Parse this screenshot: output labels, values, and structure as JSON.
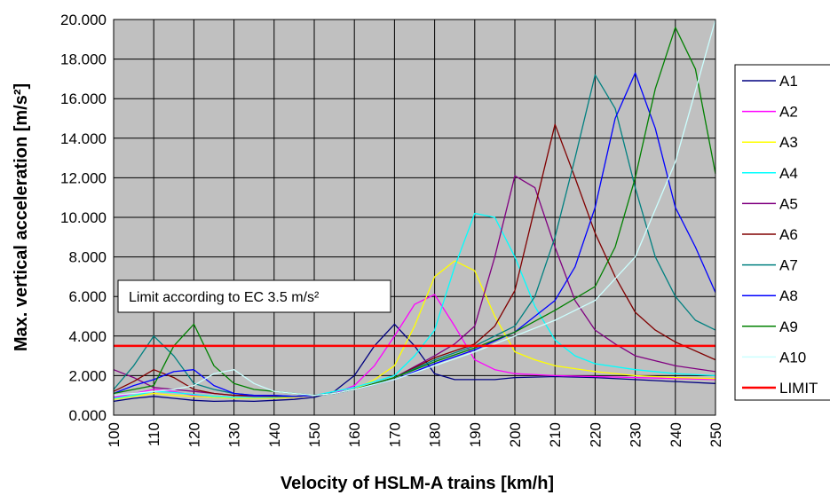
{
  "chart_data": {
    "type": "line",
    "title": "",
    "xlabel": "Velocity of HSLM-A trains [km/h]",
    "ylabel": "Max. vertical acceleration [m/s²]",
    "xlim": [
      100,
      250
    ],
    "ylim": [
      0,
      20
    ],
    "x_ticks": [
      "100",
      "110",
      "120",
      "130",
      "140",
      "150",
      "160",
      "170",
      "180",
      "190",
      "200",
      "210",
      "220",
      "230",
      "240",
      "250"
    ],
    "y_ticks": [
      "0.000",
      "2.000",
      "4.000",
      "6.000",
      "8.000",
      "10.000",
      "12.000",
      "14.000",
      "16.000",
      "18.000",
      "20.000"
    ],
    "grid": true,
    "plot_background": "#c0c0c0",
    "legend_position": "right",
    "annotation": "Limit according to EC 3.5 m/s²",
    "series": [
      {
        "name": "A1",
        "color": "#000080",
        "x": [
          100,
          105,
          110,
          115,
          120,
          125,
          130,
          135,
          140,
          145,
          150,
          155,
          160,
          165,
          170,
          175,
          180,
          185,
          190,
          195,
          200,
          210,
          220,
          230,
          240,
          250
        ],
        "y": [
          0.7,
          0.85,
          0.95,
          0.85,
          0.75,
          0.7,
          0.72,
          0.7,
          0.75,
          0.8,
          0.9,
          1.2,
          2.0,
          3.5,
          4.6,
          3.5,
          2.1,
          1.8,
          1.8,
          1.8,
          1.9,
          1.95,
          1.9,
          1.8,
          1.7,
          1.6
        ]
      },
      {
        "name": "A2",
        "color": "#ff00ff",
        "x": [
          100,
          105,
          110,
          115,
          120,
          125,
          130,
          135,
          140,
          145,
          150,
          155,
          160,
          165,
          170,
          175,
          180,
          185,
          190,
          195,
          200,
          210,
          220,
          230,
          240,
          250
        ],
        "y": [
          0.9,
          1.1,
          1.3,
          1.2,
          1.0,
          0.9,
          0.85,
          0.85,
          0.85,
          0.9,
          1.0,
          1.1,
          1.5,
          2.5,
          4.0,
          5.6,
          6.1,
          4.5,
          2.8,
          2.3,
          2.1,
          2.0,
          1.95,
          1.9,
          1.85,
          1.8
        ]
      },
      {
        "name": "A3",
        "color": "#ffff00",
        "x": [
          100,
          105,
          110,
          115,
          120,
          125,
          130,
          135,
          140,
          145,
          150,
          155,
          160,
          165,
          170,
          175,
          180,
          185,
          190,
          195,
          200,
          205,
          210,
          220,
          230,
          240,
          250
        ],
        "y": [
          0.8,
          0.95,
          1.1,
          1.0,
          0.95,
          0.9,
          0.85,
          0.85,
          0.85,
          0.9,
          1.0,
          1.1,
          1.3,
          1.8,
          2.5,
          4.5,
          7.0,
          7.8,
          7.3,
          5.0,
          3.2,
          2.8,
          2.5,
          2.2,
          2.0,
          1.9,
          1.85
        ]
      },
      {
        "name": "A4",
        "color": "#00ffff",
        "x": [
          100,
          105,
          110,
          115,
          120,
          125,
          130,
          135,
          140,
          145,
          150,
          155,
          160,
          165,
          170,
          175,
          180,
          185,
          190,
          195,
          200,
          205,
          210,
          215,
          220,
          230,
          240,
          250
        ],
        "y": [
          0.85,
          1.0,
          1.2,
          1.15,
          1.05,
          0.95,
          0.9,
          0.9,
          0.9,
          0.95,
          1.0,
          1.2,
          1.4,
          1.7,
          2.0,
          3.0,
          4.3,
          7.5,
          10.2,
          10.0,
          8.0,
          5.5,
          3.8,
          3.0,
          2.6,
          2.3,
          2.1,
          2.0
        ]
      },
      {
        "name": "A5",
        "color": "#800080",
        "x": [
          100,
          105,
          110,
          115,
          120,
          125,
          130,
          135,
          140,
          145,
          150,
          155,
          160,
          165,
          170,
          180,
          185,
          190,
          195,
          200,
          205,
          210,
          215,
          220,
          225,
          230,
          240,
          250
        ],
        "y": [
          2.3,
          1.9,
          1.4,
          1.3,
          1.2,
          1.1,
          1.0,
          0.95,
          0.95,
          0.95,
          1.0,
          1.1,
          1.3,
          1.6,
          1.9,
          3.0,
          3.6,
          4.5,
          8.0,
          12.1,
          11.5,
          8.5,
          5.8,
          4.3,
          3.6,
          3.0,
          2.5,
          2.2
        ]
      },
      {
        "name": "A6",
        "color": "#800000",
        "x": [
          100,
          105,
          110,
          115,
          120,
          125,
          130,
          135,
          140,
          145,
          150,
          155,
          160,
          170,
          180,
          190,
          195,
          200,
          205,
          210,
          215,
          220,
          225,
          230,
          235,
          240,
          250
        ],
        "y": [
          1.2,
          1.7,
          2.3,
          1.9,
          1.3,
          1.1,
          1.0,
          1.0,
          0.95,
          0.95,
          1.0,
          1.1,
          1.3,
          1.9,
          2.9,
          3.6,
          4.5,
          6.3,
          10.5,
          14.7,
          12.0,
          9.2,
          7.0,
          5.2,
          4.3,
          3.7,
          2.8
        ]
      },
      {
        "name": "A7",
        "color": "#008080",
        "x": [
          100,
          105,
          110,
          115,
          120,
          125,
          130,
          135,
          140,
          145,
          150,
          155,
          160,
          170,
          180,
          190,
          200,
          205,
          210,
          215,
          220,
          225,
          230,
          235,
          240,
          245,
          250
        ],
        "y": [
          1.3,
          2.5,
          4.0,
          3.0,
          1.6,
          1.3,
          1.1,
          1.0,
          1.0,
          0.95,
          1.0,
          1.1,
          1.3,
          1.9,
          2.8,
          3.5,
          4.5,
          6.0,
          9.0,
          13.0,
          17.2,
          15.5,
          11.5,
          8.0,
          6.0,
          4.8,
          4.3
        ]
      },
      {
        "name": "A8",
        "color": "#0000ff",
        "x": [
          100,
          105,
          110,
          115,
          120,
          125,
          130,
          135,
          140,
          145,
          150,
          155,
          160,
          170,
          180,
          190,
          200,
          210,
          215,
          220,
          225,
          230,
          235,
          240,
          245,
          250
        ],
        "y": [
          1.1,
          1.5,
          1.8,
          2.2,
          2.3,
          1.5,
          1.1,
          1.0,
          1.0,
          0.95,
          1.0,
          1.1,
          1.3,
          1.8,
          2.6,
          3.3,
          4.2,
          5.8,
          7.5,
          10.5,
          15.0,
          17.3,
          14.5,
          10.5,
          8.5,
          6.2
        ]
      },
      {
        "name": "A9",
        "color": "#008000",
        "x": [
          100,
          105,
          110,
          115,
          120,
          125,
          130,
          135,
          140,
          145,
          150,
          155,
          160,
          170,
          180,
          190,
          200,
          210,
          220,
          225,
          230,
          235,
          240,
          245,
          250
        ],
        "y": [
          1.1,
          1.3,
          1.5,
          3.5,
          4.6,
          2.5,
          1.6,
          1.3,
          1.2,
          1.1,
          1.0,
          1.1,
          1.3,
          1.9,
          2.7,
          3.4,
          4.2,
          5.3,
          6.5,
          8.5,
          12.0,
          16.5,
          19.6,
          17.5,
          12.2
        ]
      },
      {
        "name": "A10",
        "color": "#ccffff",
        "x": [
          100,
          105,
          110,
          115,
          120,
          125,
          130,
          135,
          140,
          145,
          150,
          155,
          160,
          170,
          180,
          190,
          200,
          210,
          220,
          230,
          240,
          250
        ],
        "y": [
          1.0,
          1.1,
          1.2,
          1.3,
          1.5,
          2.1,
          2.3,
          1.6,
          1.2,
          1.1,
          1.0,
          1.1,
          1.3,
          1.8,
          2.5,
          3.2,
          4.0,
          4.8,
          5.8,
          8.0,
          12.8,
          20.0
        ]
      },
      {
        "name": "LIMIT",
        "color": "#ff0000",
        "x": [
          100,
          250
        ],
        "y": [
          3.5,
          3.5
        ]
      }
    ]
  }
}
